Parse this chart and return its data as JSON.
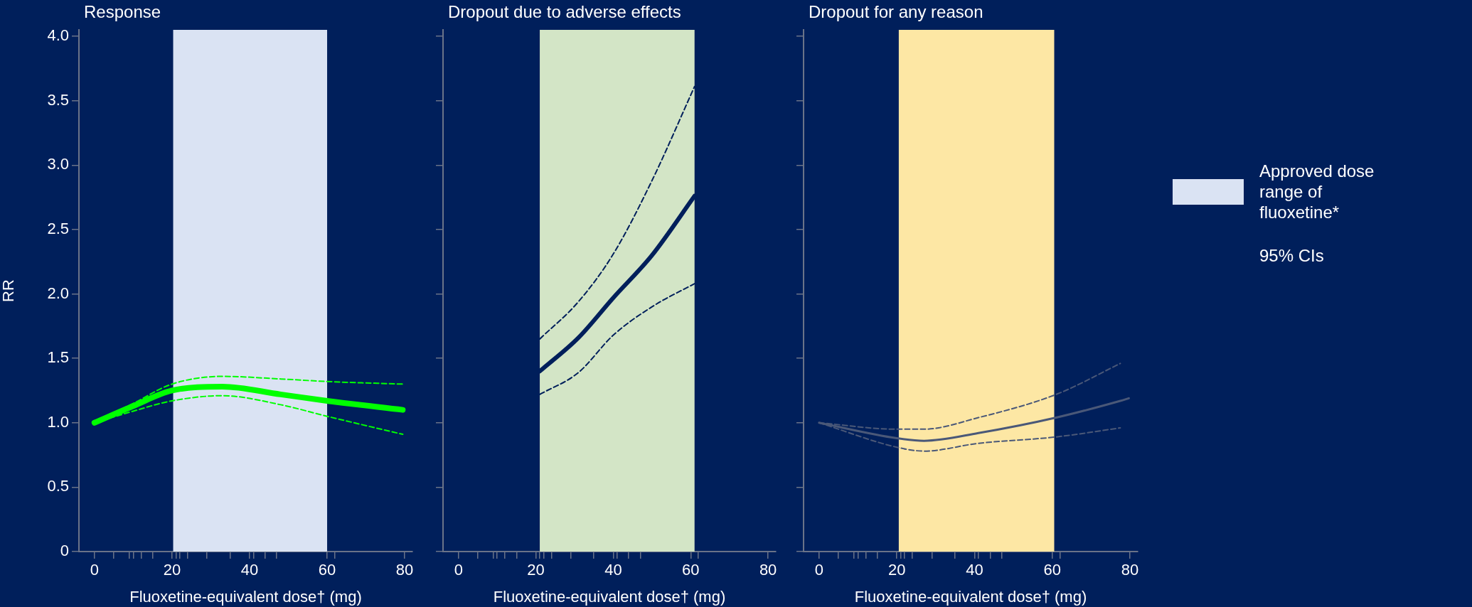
{
  "chart_data": [
    {
      "type": "line",
      "title": "Response",
      "xlabel": "Fluoxetine-equivalent dose† (mg)",
      "ylabel": "RR",
      "xlim": [
        -4,
        82
      ],
      "xticks": [
        0,
        {
          "value": 5,
          "label": null
        },
        {
          "value": 9,
          "label": null
        },
        {
          "value": 10,
          "label": null
        },
        {
          "value": 12,
          "label": null
        },
        {
          "value": 15,
          "label": null
        },
        20,
        {
          "value": 21,
          "label": null
        },
        {
          "value": 22,
          "label": null
        },
        {
          "value": 24,
          "label": null
        },
        {
          "value": 29,
          "label": null
        },
        {
          "value": 35,
          "label": null
        },
        40,
        {
          "value": 41,
          "label": null
        },
        {
          "value": 44,
          "label": null
        },
        {
          "value": 47,
          "label": null
        },
        60,
        {
          "value": 62,
          "label": null
        },
        80
      ],
      "ylim": [
        0,
        4.05
      ],
      "yticks": [
        0,
        0.5,
        {
          "value": 1,
          "label": "1.0"
        },
        1.5,
        {
          "value": 2,
          "label": "2.0"
        },
        2.5,
        {
          "value": 3,
          "label": "3.0"
        },
        3.5,
        {
          "value": 4,
          "label": "4.0"
        }
      ],
      "grid": false,
      "marker": "none",
      "bands": [
        {
          "axis": "x",
          "from": 20.3,
          "to": 60,
          "label": "Approved dose range of fluoxetine*",
          "color": "#dae3f3"
        }
      ],
      "annotations": [
        "95% CIs"
      ],
      "series": [
        {
          "color": "#00ff00",
          "line_style": "solid",
          "x": [
            0,
            10,
            20,
            33,
            48,
            60,
            79.5
          ],
          "values": [
            1.0,
            1.13,
            1.25,
            1.28,
            1.22,
            1.17,
            1.1
          ]
        },
        {
          "color": "#00ff00",
          "line_style": "dashed",
          "x": [
            0,
            10,
            20,
            33,
            48,
            60,
            79.5
          ],
          "values": [
            1.0,
            1.09,
            1.17,
            1.21,
            1.14,
            1.05,
            0.91
          ]
        },
        {
          "color": "#00ff00",
          "line_style": "dashed",
          "x": [
            0,
            10,
            20,
            33,
            48,
            60,
            79.5
          ],
          "values": [
            1.0,
            1.15,
            1.3,
            1.36,
            1.34,
            1.32,
            1.3
          ]
        }
      ]
    },
    {
      "type": "line",
      "title": "Dropout due to adverse effects",
      "xlabel": "Fluoxetine-equivalent dose† (mg)",
      "xlim": [
        -4,
        82
      ],
      "xticks": [
        0,
        {
          "value": 5,
          "label": null
        },
        {
          "value": 9,
          "label": null
        },
        {
          "value": 10,
          "label": null
        },
        {
          "value": 12,
          "label": null
        },
        {
          "value": 15,
          "label": null
        },
        20,
        {
          "value": 21,
          "label": null
        },
        {
          "value": 22,
          "label": null
        },
        {
          "value": 24,
          "label": null
        },
        {
          "value": 29,
          "label": null
        },
        {
          "value": 35,
          "label": null
        },
        40,
        {
          "value": 41,
          "label": null
        },
        {
          "value": 44,
          "label": null
        },
        {
          "value": 47,
          "label": null
        },
        60,
        {
          "value": 62,
          "label": null
        },
        80
      ],
      "ylim": [
        0,
        4.05
      ],
      "yticks": [
        0,
        0.5,
        1,
        1.5,
        2,
        2.5,
        3,
        3.5,
        4
      ],
      "tick_labels": "x",
      "grid": false,
      "marker": "none",
      "bands": [
        {
          "axis": "x",
          "from": 21,
          "to": 61,
          "color": "#d3e5c6"
        }
      ],
      "series": [
        {
          "color": "#001f5b",
          "line_style": "solid",
          "x": [
            21,
            31,
            40,
            50,
            61
          ],
          "values": [
            1.4,
            1.66,
            1.97,
            2.3,
            2.76
          ]
        },
        {
          "color": "#001f5b",
          "line_style": "dashed",
          "x": [
            21,
            31,
            40,
            50,
            61
          ],
          "values": [
            1.22,
            1.39,
            1.68,
            1.9,
            2.08
          ]
        },
        {
          "color": "#001f5b",
          "line_style": "dashed",
          "x": [
            21,
            31,
            40,
            50,
            61
          ],
          "values": [
            1.65,
            1.94,
            2.31,
            2.88,
            3.61
          ]
        }
      ]
    },
    {
      "type": "line",
      "title": "Dropout for any reason",
      "xlabel": "Fluoxetine-equivalent dose† (mg)",
      "xlim": [
        -4,
        82
      ],
      "xticks": [
        0,
        {
          "value": 5,
          "label": null
        },
        {
          "value": 9,
          "label": null
        },
        {
          "value": 10,
          "label": null
        },
        {
          "value": 12,
          "label": null
        },
        {
          "value": 15,
          "label": null
        },
        20,
        {
          "value": 21,
          "label": null
        },
        {
          "value": 22,
          "label": null
        },
        {
          "value": 24,
          "label": null
        },
        {
          "value": 29,
          "label": null
        },
        {
          "value": 35,
          "label": null
        },
        40,
        {
          "value": 41,
          "label": null
        },
        {
          "value": 44,
          "label": null
        },
        {
          "value": 47,
          "label": null
        },
        60,
        {
          "value": 62,
          "label": null
        },
        80
      ],
      "ylim": [
        0,
        4.05
      ],
      "yticks": [
        0,
        0.5,
        1,
        1.5,
        2,
        2.5,
        3,
        3.5,
        4
      ],
      "tick_labels": "x",
      "grid": false,
      "marker": "none",
      "bands": [
        {
          "axis": "x",
          "from": 20.5,
          "to": 60.5,
          "color": "#fde7a4"
        }
      ],
      "series": [
        {
          "color": "#4a5878",
          "line_style": "solid",
          "x": [
            0,
            20,
            27,
            41,
            61,
            77.5,
            79.7
          ],
          "values": [
            1.0,
            0.88,
            0.86,
            0.92,
            1.04,
            1.17,
            1.19
          ]
        },
        {
          "color": "#4a5878",
          "line_style": "dashed",
          "x": [
            0,
            20,
            27,
            41,
            61,
            77.5
          ],
          "values": [
            1.0,
            0.81,
            0.78,
            0.84,
            0.89,
            0.96
          ]
        },
        {
          "color": "#4a5878",
          "line_style": "dashed",
          "x": [
            0,
            20,
            27,
            41,
            61,
            77.5
          ],
          "values": [
            1.0,
            0.95,
            0.95,
            1.04,
            1.22,
            1.46
          ]
        }
      ]
    }
  ]
}
